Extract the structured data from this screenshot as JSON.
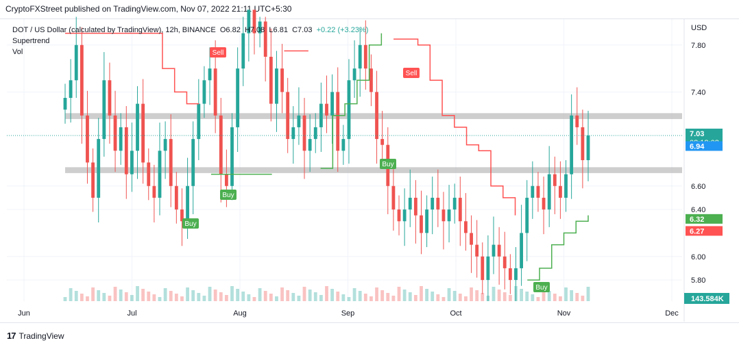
{
  "publish_text": "CryptoFXStreet published on TradingView.com, Nov 07, 2022 21:11 UTC+5:30",
  "legend": {
    "symbol": "DOT / US Dollar (calculated by TradingView), 12h, BINANCE",
    "open": "O6.82",
    "high": "H7.08",
    "low": "L6.81",
    "close": "C7.03",
    "change": "+0.22 (+3.23%)",
    "indicator_1": "Supertrend",
    "indicator_2": "Vol"
  },
  "footer": {
    "logo_glyph": "17",
    "brand": "TradingView"
  },
  "colors": {
    "up": "#26a69a",
    "down": "#ef5350",
    "supertrend_up": "#4caf50",
    "supertrend_down": "#ff5252",
    "zone": "#bdbdbd",
    "price_label": "#26a69a",
    "level_blue": "#2196f3"
  },
  "chart_data": {
    "type": "candlestick",
    "title": "DOT / US Dollar (calculated by TradingView), 12h, BINANCE",
    "currency": "USD",
    "x_ticks": [
      "Jun",
      "Jul",
      "Aug",
      "Sep",
      "Oct",
      "Nov",
      "Dec"
    ],
    "y_ticks": [
      5.8,
      6.0,
      6.4,
      6.6,
      7.4,
      7.8
    ],
    "ylim": [
      5.62,
      8.02
    ],
    "series_close": [
      7.35,
      7.5,
      7.8,
      7.2,
      6.8,
      6.5,
      7.0,
      7.5,
      7.2,
      6.9,
      7.1,
      6.7,
      6.9,
      7.3,
      6.8,
      6.6,
      6.5,
      6.9,
      7.0,
      6.6,
      6.4,
      6.3,
      6.6,
      7.0,
      7.3,
      7.5,
      7.6,
      7.2,
      6.7,
      6.6,
      7.1,
      7.6,
      7.9,
      8.1,
      7.9,
      8.0,
      7.7,
      7.3,
      7.6,
      7.4,
      7.0,
      7.1,
      7.2,
      6.9,
      7.0,
      7.1,
      7.3,
      7.2,
      7.4,
      6.9,
      7.0,
      7.5,
      7.6,
      7.8,
      7.6,
      7.4,
      7.0,
      6.95,
      6.6,
      6.4,
      6.3,
      6.4,
      6.5,
      6.35,
      6.2,
      6.4,
      6.5,
      6.4,
      6.3,
      6.4,
      6.5,
      6.3,
      6.2,
      6.1,
      6.0,
      5.8,
      6.0,
      6.1,
      6.0,
      5.9,
      5.8,
      5.9,
      6.2,
      6.5,
      6.6,
      6.5,
      6.4,
      6.7,
      6.6,
      6.5,
      6.7,
      7.2,
      7.1,
      6.82,
      7.03
    ],
    "supertrend": {
      "segments": [
        {
          "direction": "down",
          "values": [
            7.9,
            7.9,
            7.9,
            7.9,
            7.9,
            7.9,
            7.9,
            7.9,
            7.6,
            7.4,
            7.3,
            7.3
          ]
        },
        {
          "direction": "up",
          "values": [
            6.7,
            6.7,
            6.7,
            6.7,
            6.7,
            6.7
          ]
        },
        {
          "direction": "down",
          "values": [
            7.75,
            7.75,
            7.75
          ]
        },
        {
          "direction": "up",
          "values": [
            6.75,
            7.2,
            7.3,
            7.5,
            7.8,
            7.9
          ]
        },
        {
          "direction": "down",
          "values": [
            7.85,
            7.85,
            7.8,
            7.5,
            7.2,
            7.1,
            6.95,
            6.9,
            6.6,
            6.5,
            6.35
          ]
        },
        {
          "direction": "up",
          "values": [
            5.8,
            5.9,
            6.1,
            6.2,
            6.3,
            6.35
          ]
        }
      ]
    },
    "signals": [
      "Buy",
      "Sell",
      "Buy",
      "Sell",
      "Buy",
      "Buy"
    ],
    "zones": [
      {
        "from": 7.17,
        "to": 7.22
      },
      {
        "from": 6.71,
        "to": 6.76
      }
    ],
    "price_labels": [
      {
        "value": 7.03,
        "text": "7.03",
        "subtext": "08:18:08",
        "kind": "last"
      },
      {
        "value": 6.94,
        "text": "6.94",
        "kind": "level"
      },
      {
        "value": 6.32,
        "text": "6.32",
        "kind": "supertrend_up"
      },
      {
        "value": 6.27,
        "text": "6.27",
        "kind": "supertrend_down"
      }
    ],
    "volume_label": "143.584K"
  }
}
